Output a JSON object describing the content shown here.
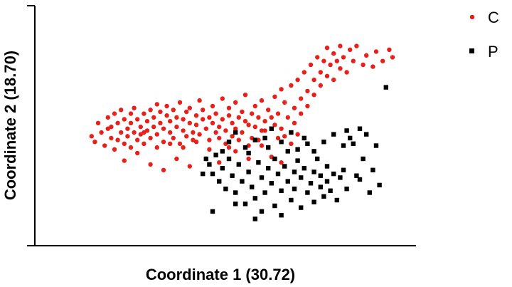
{
  "chart_data": {
    "type": "scatter",
    "xlabel": "Coordinate 1 (30.72)",
    "ylabel": "Coordinate 2 (18.70)",
    "xlim": [
      0,
      1
    ],
    "ylim": [
      0,
      1
    ],
    "ticks_shown": false,
    "grid": false,
    "legend_position": "top-right",
    "series": [
      {
        "name": "C",
        "marker": "circle",
        "color": "#e8201c",
        "points": [
          [
            0.08,
            0.48
          ],
          [
            0.09,
            0.45
          ],
          [
            0.1,
            0.55
          ],
          [
            0.11,
            0.5
          ],
          [
            0.12,
            0.43
          ],
          [
            0.13,
            0.58
          ],
          [
            0.13,
            0.52
          ],
          [
            0.14,
            0.47
          ],
          [
            0.15,
            0.6
          ],
          [
            0.15,
            0.41
          ],
          [
            0.16,
            0.55
          ],
          [
            0.17,
            0.62
          ],
          [
            0.17,
            0.5
          ],
          [
            0.18,
            0.57
          ],
          [
            0.18,
            0.44
          ],
          [
            0.19,
            0.52
          ],
          [
            0.19,
            0.48
          ],
          [
            0.2,
            0.6
          ],
          [
            0.2,
            0.55
          ],
          [
            0.21,
            0.5
          ],
          [
            0.21,
            0.63
          ],
          [
            0.22,
            0.46
          ],
          [
            0.22,
            0.57
          ],
          [
            0.23,
            0.53
          ],
          [
            0.23,
            0.49
          ],
          [
            0.24,
            0.6
          ],
          [
            0.24,
            0.44
          ],
          [
            0.25,
            0.56
          ],
          [
            0.25,
            0.51
          ],
          [
            0.26,
            0.62
          ],
          [
            0.26,
            0.47
          ],
          [
            0.27,
            0.58
          ],
          [
            0.27,
            0.53
          ],
          [
            0.28,
            0.65
          ],
          [
            0.28,
            0.49
          ],
          [
            0.29,
            0.55
          ],
          [
            0.29,
            0.61
          ],
          [
            0.3,
            0.45
          ],
          [
            0.3,
            0.52
          ],
          [
            0.31,
            0.59
          ],
          [
            0.31,
            0.64
          ],
          [
            0.32,
            0.5
          ],
          [
            0.32,
            0.56
          ],
          [
            0.33,
            0.47
          ],
          [
            0.33,
            0.62
          ],
          [
            0.34,
            0.53
          ],
          [
            0.34,
            0.58
          ],
          [
            0.35,
            0.66
          ],
          [
            0.35,
            0.44
          ],
          [
            0.36,
            0.51
          ],
          [
            0.36,
            0.57
          ],
          [
            0.37,
            0.61
          ],
          [
            0.37,
            0.48
          ],
          [
            0.38,
            0.55
          ],
          [
            0.38,
            0.63
          ],
          [
            0.39,
            0.5
          ],
          [
            0.39,
            0.46
          ],
          [
            0.4,
            0.59
          ],
          [
            0.4,
            0.54
          ],
          [
            0.41,
            0.67
          ],
          [
            0.41,
            0.49
          ],
          [
            0.42,
            0.57
          ],
          [
            0.42,
            0.62
          ],
          [
            0.43,
            0.52
          ],
          [
            0.44,
            0.58
          ],
          [
            0.44,
            0.46
          ],
          [
            0.45,
            0.55
          ],
          [
            0.45,
            0.64
          ],
          [
            0.46,
            0.5
          ],
          [
            0.46,
            0.6
          ],
          [
            0.47,
            0.53
          ],
          [
            0.48,
            0.57
          ],
          [
            0.48,
            0.68
          ],
          [
            0.49,
            0.51
          ],
          [
            0.49,
            0.44
          ],
          [
            0.5,
            0.59
          ],
          [
            0.5,
            0.63
          ],
          [
            0.51,
            0.55
          ],
          [
            0.51,
            0.48
          ],
          [
            0.52,
            0.66
          ],
          [
            0.52,
            0.52
          ],
          [
            0.53,
            0.58
          ],
          [
            0.54,
            0.61
          ],
          [
            0.54,
            0.5
          ],
          [
            0.55,
            0.56
          ],
          [
            0.55,
            0.7
          ],
          [
            0.56,
            0.54
          ],
          [
            0.57,
            0.6
          ],
          [
            0.57,
            0.47
          ],
          [
            0.58,
            0.64
          ],
          [
            0.58,
            0.53
          ],
          [
            0.59,
            0.58
          ],
          [
            0.6,
            0.67
          ],
          [
            0.6,
            0.51
          ],
          [
            0.61,
            0.56
          ],
          [
            0.62,
            0.62
          ],
          [
            0.62,
            0.42
          ],
          [
            0.63,
            0.58
          ],
          [
            0.64,
            0.69
          ],
          [
            0.64,
            0.54
          ],
          [
            0.65,
            0.6
          ],
          [
            0.66,
            0.73
          ],
          [
            0.66,
            0.52
          ],
          [
            0.67,
            0.66
          ],
          [
            0.68,
            0.58
          ],
          [
            0.68,
            0.4
          ],
          [
            0.69,
            0.75
          ],
          [
            0.7,
            0.63
          ],
          [
            0.7,
            0.55
          ],
          [
            0.71,
            0.78
          ],
          [
            0.72,
            0.68
          ],
          [
            0.72,
            0.6
          ],
          [
            0.73,
            0.82
          ],
          [
            0.74,
            0.72
          ],
          [
            0.74,
            0.64
          ],
          [
            0.75,
            0.86
          ],
          [
            0.76,
            0.78
          ],
          [
            0.76,
            0.7
          ],
          [
            0.77,
            0.9
          ],
          [
            0.78,
            0.82
          ],
          [
            0.78,
            0.75
          ],
          [
            0.79,
            0.88
          ],
          [
            0.8,
            0.95
          ],
          [
            0.8,
            0.8
          ],
          [
            0.81,
            0.86
          ],
          [
            0.82,
            0.92
          ],
          [
            0.82,
            0.78
          ],
          [
            0.83,
            0.88
          ],
          [
            0.84,
            0.96
          ],
          [
            0.84,
            0.84
          ],
          [
            0.85,
            0.9
          ],
          [
            0.86,
            0.82
          ],
          [
            0.87,
            0.94
          ],
          [
            0.88,
            0.88
          ],
          [
            0.89,
            0.96
          ],
          [
            0.91,
            0.86
          ],
          [
            0.92,
            0.91
          ],
          [
            0.94,
            0.85
          ],
          [
            0.95,
            0.93
          ],
          [
            0.97,
            0.88
          ],
          [
            0.99,
            0.94
          ],
          [
            1.0,
            0.9
          ],
          [
            0.18,
            0.35
          ],
          [
            0.22,
            0.39
          ],
          [
            0.26,
            0.33
          ],
          [
            0.3,
            0.3
          ],
          [
            0.34,
            0.36
          ],
          [
            0.38,
            0.32
          ],
          [
            0.43,
            0.36
          ],
          [
            0.47,
            0.34
          ],
          [
            0.52,
            0.4
          ],
          [
            0.56,
            0.36
          ],
          [
            0.6,
            0.43
          ],
          [
            0.63,
            0.37
          ],
          [
            0.66,
            0.34
          ],
          [
            0.67,
            0.48
          ],
          [
            0.69,
            0.44
          ],
          [
            0.71,
            0.49
          ],
          [
            0.14,
            0.53
          ],
          [
            0.16,
            0.46
          ],
          [
            0.2,
            0.42
          ],
          [
            0.24,
            0.5
          ],
          [
            0.28,
            0.42
          ],
          [
            0.32,
            0.44
          ],
          [
            0.36,
            0.42
          ],
          [
            0.4,
            0.45
          ],
          [
            0.44,
            0.41
          ],
          [
            0.47,
            0.47
          ],
          [
            0.5,
            0.42
          ],
          [
            0.53,
            0.46
          ],
          [
            0.56,
            0.43
          ],
          [
            0.59,
            0.46
          ],
          [
            0.61,
            0.51
          ],
          [
            0.65,
            0.47
          ]
        ]
      },
      {
        "name": "P",
        "marker": "square",
        "color": "#000000",
        "points": [
          [
            0.44,
            0.33
          ],
          [
            0.45,
            0.28
          ],
          [
            0.46,
            0.38
          ],
          [
            0.47,
            0.24
          ],
          [
            0.48,
            0.31
          ],
          [
            0.49,
            0.2
          ],
          [
            0.5,
            0.36
          ],
          [
            0.51,
            0.27
          ],
          [
            0.52,
            0.18
          ],
          [
            0.53,
            0.33
          ],
          [
            0.54,
            0.24
          ],
          [
            0.55,
            0.12
          ],
          [
            0.56,
            0.29
          ],
          [
            0.56,
            0.39
          ],
          [
            0.57,
            0.21
          ],
          [
            0.58,
            0.15
          ],
          [
            0.59,
            0.34
          ],
          [
            0.6,
            0.26
          ],
          [
            0.6,
            0.08
          ],
          [
            0.61,
            0.18
          ],
          [
            0.62,
            0.31
          ],
          [
            0.62,
            0.42
          ],
          [
            0.63,
            0.23
          ],
          [
            0.64,
            0.11
          ],
          [
            0.64,
            0.36
          ],
          [
            0.65,
            0.28
          ],
          [
            0.66,
            0.19
          ],
          [
            0.66,
            0.06
          ],
          [
            0.67,
            0.32
          ],
          [
            0.68,
            0.24
          ],
          [
            0.68,
            0.4
          ],
          [
            0.69,
            0.14
          ],
          [
            0.7,
            0.29
          ],
          [
            0.7,
            0.2
          ],
          [
            0.71,
            0.35
          ],
          [
            0.72,
            0.26
          ],
          [
            0.72,
            0.1
          ],
          [
            0.73,
            0.31
          ],
          [
            0.74,
            0.18
          ],
          [
            0.74,
            0.44
          ],
          [
            0.75,
            0.23
          ],
          [
            0.76,
            0.29
          ],
          [
            0.76,
            0.13
          ],
          [
            0.77,
            0.36
          ],
          [
            0.78,
            0.21
          ],
          [
            0.78,
            0.27
          ],
          [
            0.79,
            0.16
          ],
          [
            0.8,
            0.32
          ],
          [
            0.8,
            0.24
          ],
          [
            0.81,
            0.19
          ],
          [
            0.82,
            0.28
          ],
          [
            0.83,
            0.14
          ],
          [
            0.84,
            0.26
          ],
          [
            0.85,
            0.3
          ],
          [
            0.86,
            0.2
          ],
          [
            0.88,
            0.44
          ],
          [
            0.89,
            0.27
          ],
          [
            0.9,
            0.52
          ],
          [
            0.91,
            0.36
          ],
          [
            0.92,
            0.49
          ],
          [
            0.94,
            0.3
          ],
          [
            0.95,
            0.43
          ],
          [
            0.96,
            0.22
          ],
          [
            0.98,
            0.74
          ],
          [
            0.42,
            0.28
          ],
          [
            0.43,
            0.36
          ],
          [
            0.48,
            0.4
          ],
          [
            0.5,
            0.45
          ],
          [
            0.52,
            0.5
          ],
          [
            0.55,
            0.42
          ],
          [
            0.58,
            0.46
          ],
          [
            0.61,
            0.47
          ],
          [
            0.63,
            0.52
          ],
          [
            0.66,
            0.45
          ],
          [
            0.69,
            0.5
          ],
          [
            0.71,
            0.41
          ],
          [
            0.73,
            0.47
          ],
          [
            0.76,
            0.4
          ],
          [
            0.79,
            0.45
          ],
          [
            0.82,
            0.49
          ],
          [
            0.85,
            0.43
          ],
          [
            0.86,
            0.51
          ],
          [
            0.87,
            0.47
          ],
          [
            0.9,
            0.25
          ],
          [
            0.93,
            0.18
          ],
          [
            0.45,
            0.08
          ],
          [
            0.52,
            0.12
          ],
          [
            0.58,
            0.04
          ]
        ]
      }
    ]
  }
}
